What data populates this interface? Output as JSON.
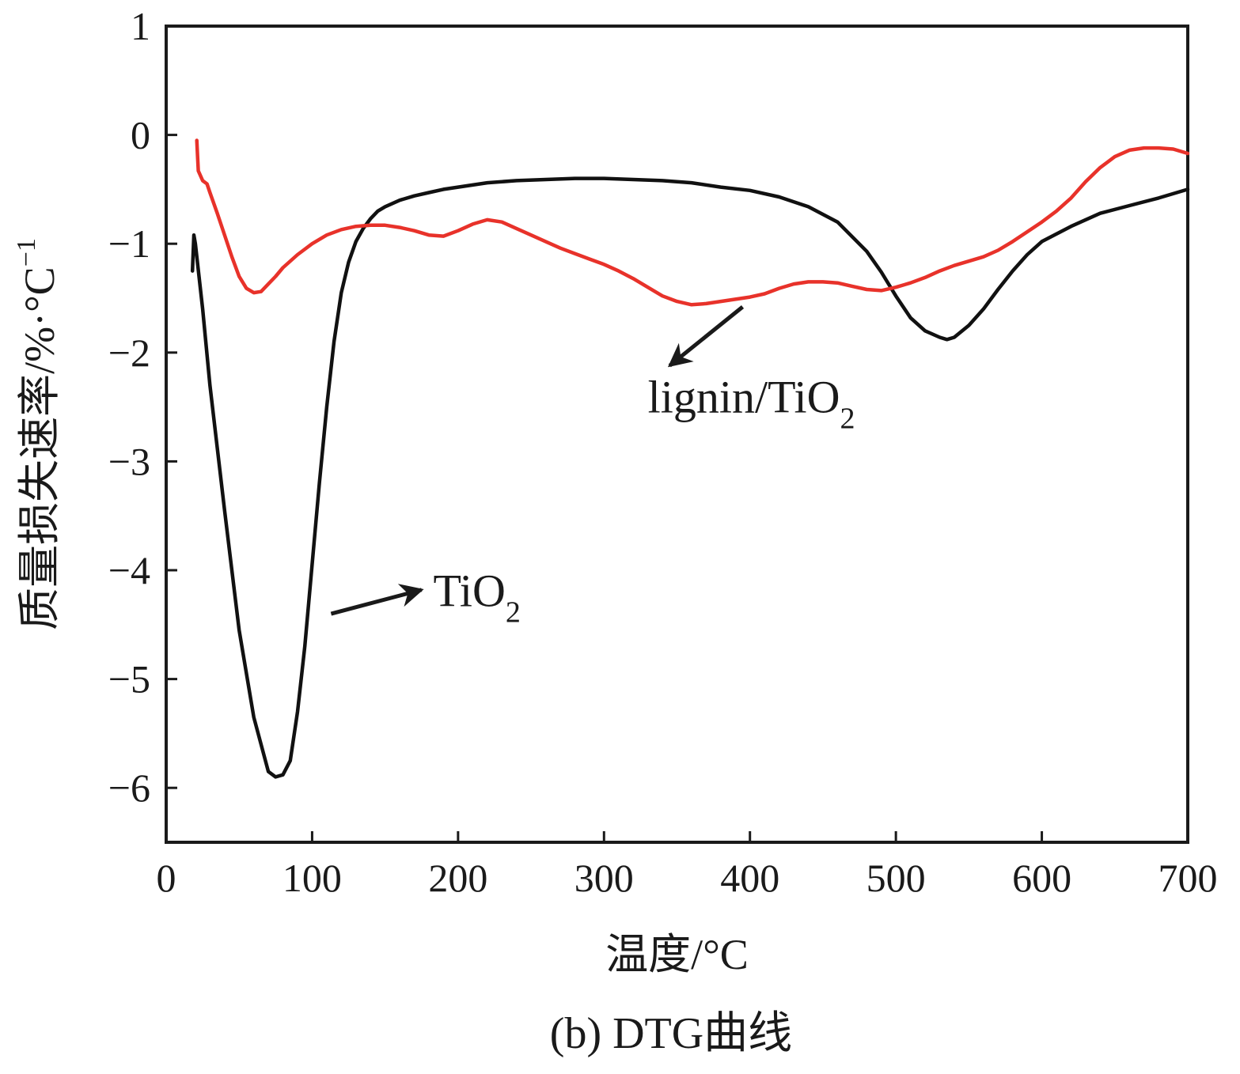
{
  "chart_data": {
    "type": "line",
    "caption": "(b) DTG曲线",
    "xlabel": "温度/°C",
    "ylabel": {
      "base": "质量损失速率/%·°C",
      "sup": "−1"
    },
    "xlim": [
      0,
      700
    ],
    "ylim": [
      -6.5,
      1
    ],
    "xticks": [
      0,
      100,
      200,
      300,
      400,
      500,
      600,
      700
    ],
    "yticks": [
      1,
      0,
      -1,
      -2,
      -3,
      -4,
      -5,
      -6
    ],
    "xtick_labels": [
      "0",
      "100",
      "200",
      "300",
      "400",
      "500",
      "600",
      "700"
    ],
    "ytick_labels": [
      "1",
      "0",
      "−1",
      "−2",
      "−3",
      "−4",
      "−5",
      "−6"
    ],
    "grid": false,
    "legend": "none",
    "series": [
      {
        "name": "TiO2",
        "color": "#111111",
        "x": [
          18,
          19,
          20,
          25,
          30,
          40,
          50,
          60,
          70,
          75,
          80,
          85,
          90,
          95,
          100,
          105,
          110,
          115,
          120,
          125,
          130,
          135,
          140,
          145,
          150,
          160,
          170,
          180,
          190,
          200,
          220,
          240,
          260,
          280,
          300,
          320,
          340,
          360,
          380,
          400,
          420,
          440,
          460,
          480,
          490,
          500,
          510,
          520,
          530,
          535,
          540,
          550,
          560,
          570,
          580,
          590,
          600,
          620,
          640,
          660,
          680,
          700
        ],
        "y": [
          -1.25,
          -0.92,
          -1.0,
          -1.6,
          -2.3,
          -3.45,
          -4.55,
          -5.35,
          -5.85,
          -5.9,
          -5.88,
          -5.75,
          -5.3,
          -4.7,
          -3.95,
          -3.2,
          -2.5,
          -1.9,
          -1.45,
          -1.17,
          -0.98,
          -0.86,
          -0.77,
          -0.7,
          -0.66,
          -0.6,
          -0.56,
          -0.53,
          -0.5,
          -0.48,
          -0.44,
          -0.42,
          -0.41,
          -0.4,
          -0.4,
          -0.41,
          -0.42,
          -0.44,
          -0.48,
          -0.51,
          -0.57,
          -0.66,
          -0.8,
          -1.07,
          -1.26,
          -1.48,
          -1.68,
          -1.8,
          -1.86,
          -1.88,
          -1.86,
          -1.75,
          -1.6,
          -1.42,
          -1.25,
          -1.1,
          -0.98,
          -0.84,
          -0.72,
          -0.65,
          -0.58,
          -0.5
        ]
      },
      {
        "name": "lignin/TiO2",
        "color": "#e8322a",
        "x": [
          21,
          21.5,
          22,
          25,
          28,
          30,
          35,
          40,
          45,
          50,
          55,
          60,
          65,
          70,
          75,
          80,
          90,
          100,
          110,
          120,
          130,
          140,
          150,
          160,
          170,
          180,
          190,
          200,
          210,
          220,
          230,
          240,
          250,
          260,
          270,
          280,
          290,
          300,
          310,
          320,
          330,
          340,
          350,
          360,
          370,
          380,
          390,
          400,
          410,
          420,
          430,
          440,
          450,
          460,
          470,
          480,
          490,
          500,
          510,
          520,
          530,
          540,
          550,
          560,
          570,
          580,
          590,
          600,
          610,
          620,
          630,
          640,
          650,
          660,
          670,
          680,
          690,
          700
        ],
        "y": [
          -0.05,
          -0.2,
          -0.33,
          -0.42,
          -0.45,
          -0.53,
          -0.72,
          -0.92,
          -1.12,
          -1.3,
          -1.41,
          -1.45,
          -1.44,
          -1.37,
          -1.3,
          -1.22,
          -1.1,
          -1.0,
          -0.92,
          -0.87,
          -0.84,
          -0.83,
          -0.83,
          -0.85,
          -0.88,
          -0.92,
          -0.93,
          -0.88,
          -0.82,
          -0.78,
          -0.8,
          -0.86,
          -0.92,
          -0.98,
          -1.04,
          -1.09,
          -1.14,
          -1.19,
          -1.25,
          -1.32,
          -1.4,
          -1.48,
          -1.53,
          -1.56,
          -1.55,
          -1.53,
          -1.51,
          -1.49,
          -1.46,
          -1.41,
          -1.37,
          -1.35,
          -1.35,
          -1.36,
          -1.39,
          -1.42,
          -1.43,
          -1.4,
          -1.36,
          -1.31,
          -1.25,
          -1.2,
          -1.16,
          -1.12,
          -1.06,
          -0.98,
          -0.89,
          -0.8,
          -0.7,
          -0.58,
          -0.43,
          -0.3,
          -0.2,
          -0.14,
          -0.12,
          -0.12,
          -0.13,
          -0.17
        ]
      }
    ],
    "annotations": [
      {
        "key": "lignin",
        "text_main": "lignin/TiO",
        "text_sub": "2",
        "text_at": [
          330,
          -2.55
        ],
        "arrow_from": [
          395,
          -1.58
        ],
        "arrow_to": [
          345,
          -2.12
        ]
      },
      {
        "key": "tio2",
        "text_main": "TiO",
        "text_sub": "2",
        "text_at": [
          183,
          -4.33
        ],
        "arrow_from": [
          113,
          -4.4
        ],
        "arrow_to": [
          175,
          -4.18
        ]
      }
    ]
  }
}
